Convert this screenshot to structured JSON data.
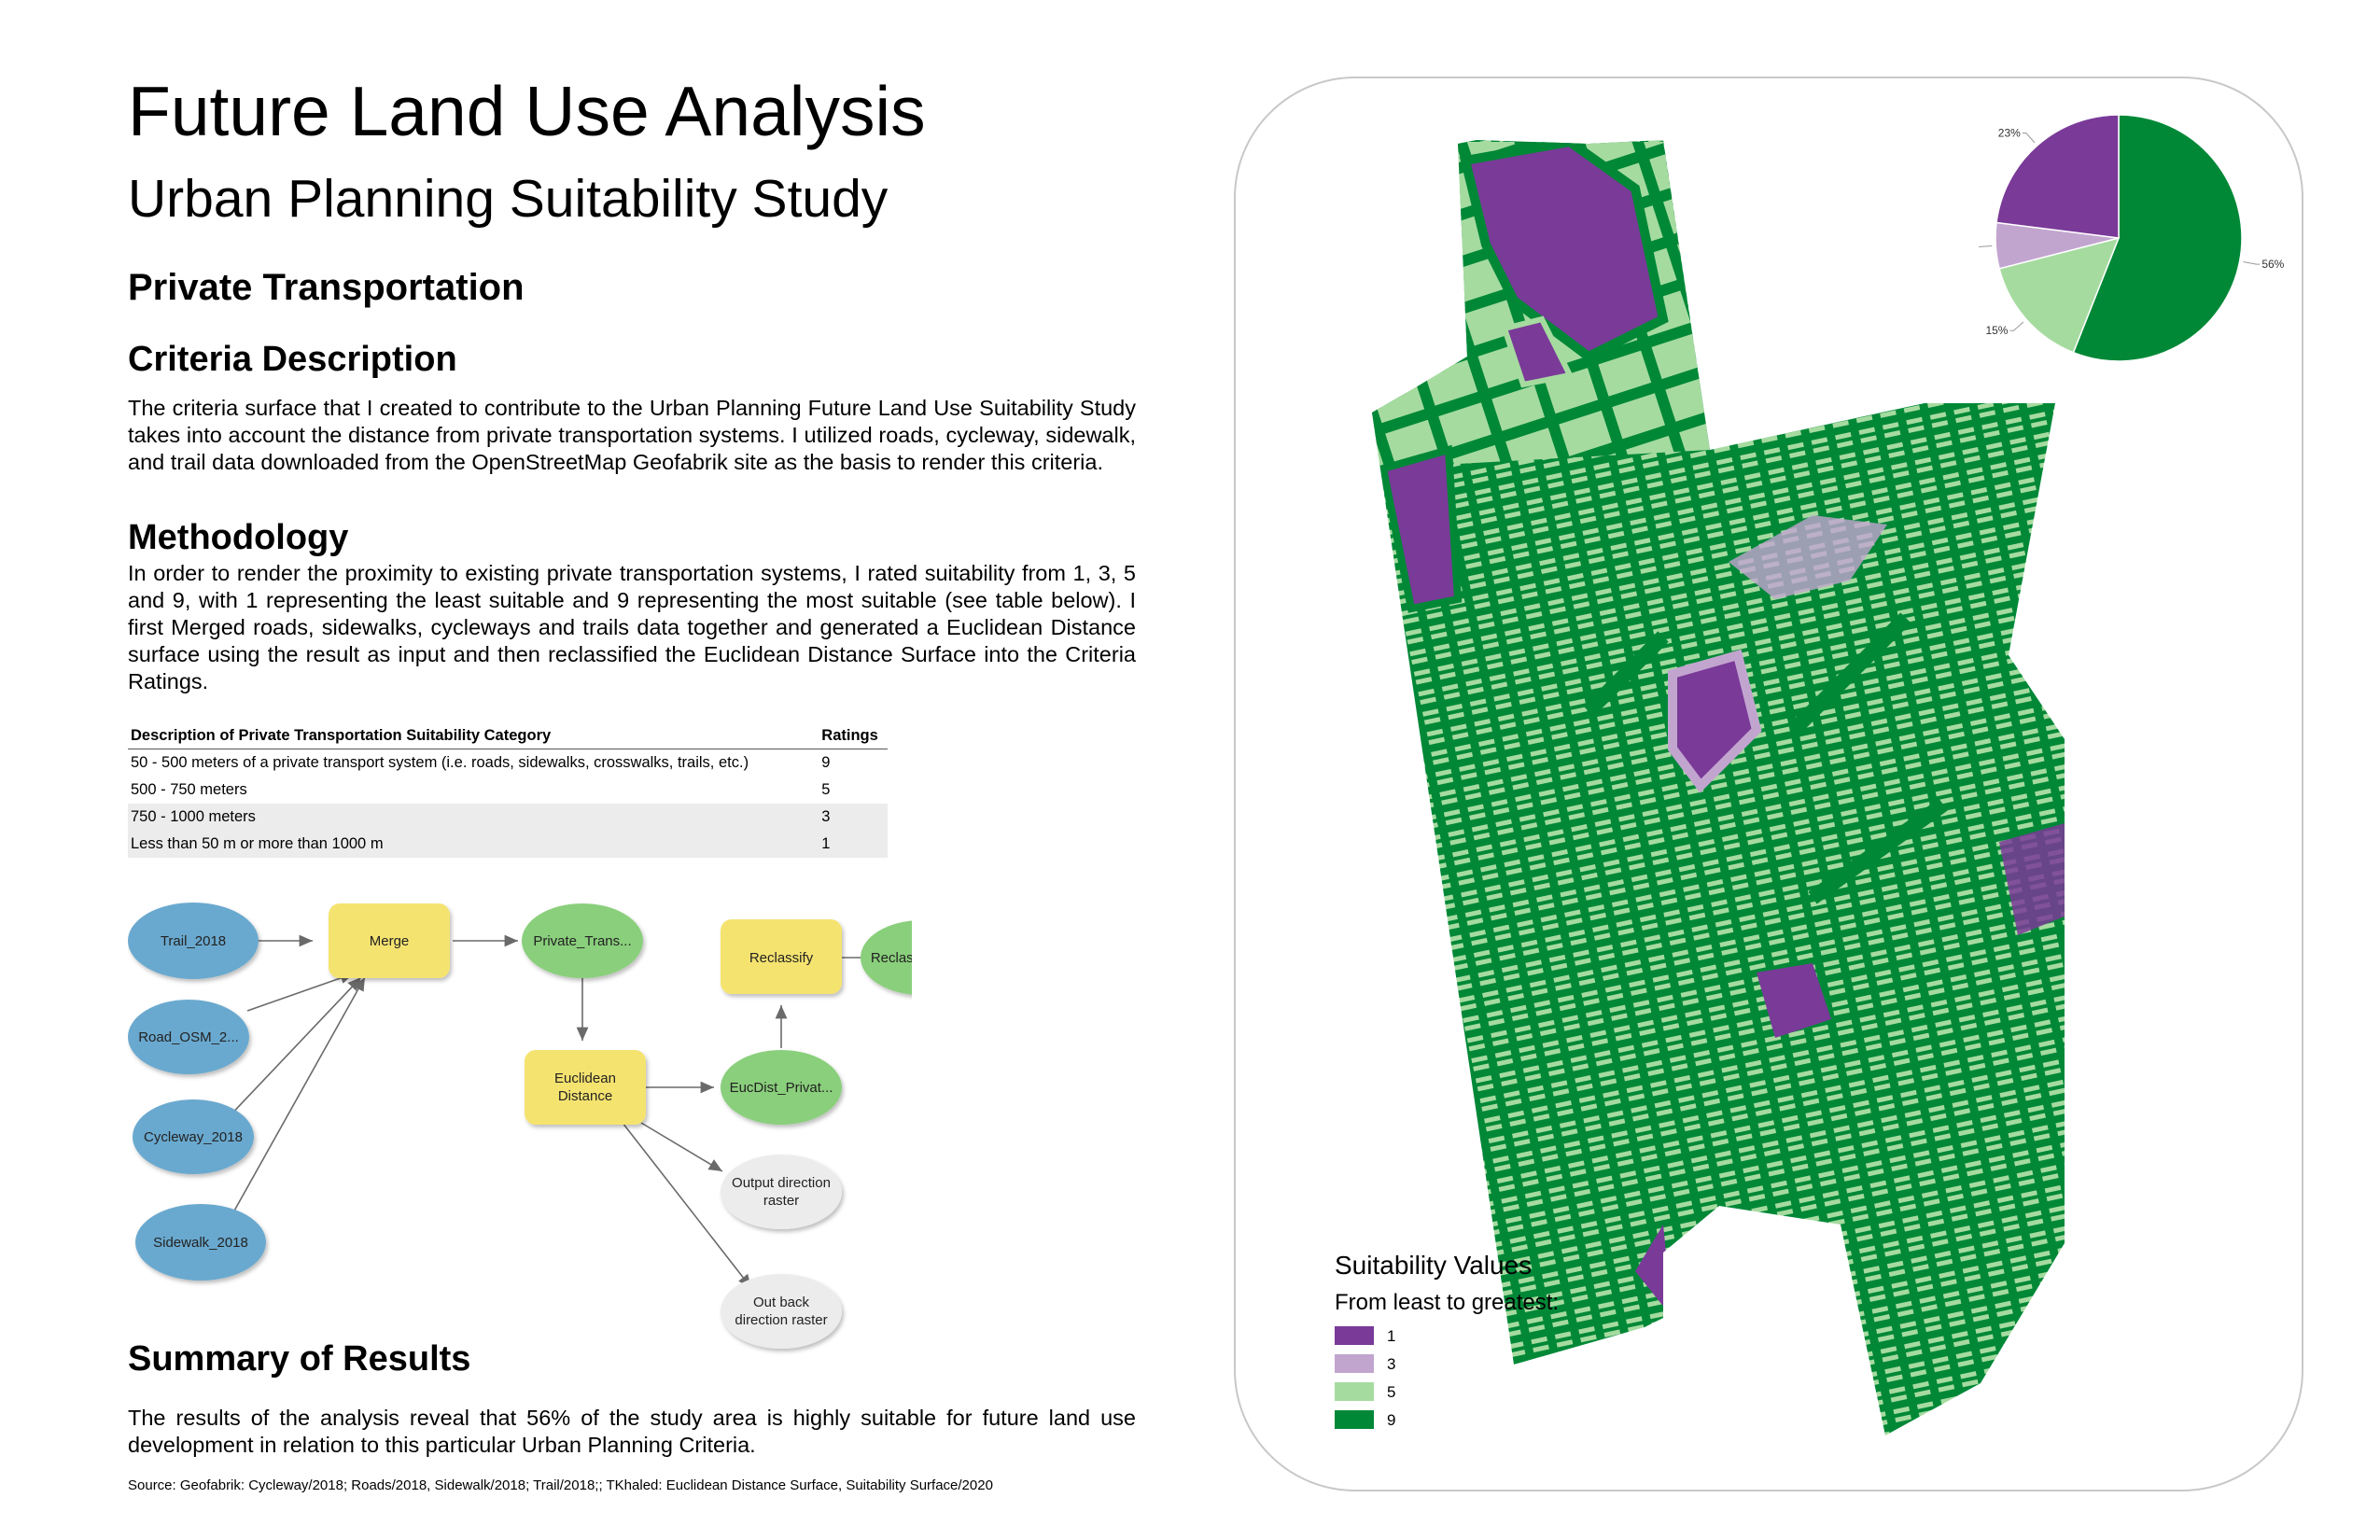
{
  "title": "Future Land Use Analysis",
  "subtitle": "Urban Planning Suitability Study",
  "section_title": "Private Transportation",
  "criteria": {
    "heading": "Criteria Description",
    "text": "The criteria surface that I created to contribute to the Urban Planning Future Land Use Suitability Study takes into account the distance from private transportation systems.  I utilized roads, cycleway, sidewalk, and trail data downloaded from the OpenStreetMap Geofabrik site as the basis to render this criteria."
  },
  "methodology": {
    "heading": "Methodology",
    "text": "In order to render the proximity to existing private transportation systems, I rated suitability from 1, 3, 5 and 9, with 1 representing the least suitable and 9 representing the most suitable (see table below). I first Merged roads, sidewalks, cycleways and trails data together and generated a Euclidean Distance surface using the result as input and then reclassified the Euclidean Distance Surface into the Criteria Ratings."
  },
  "table": {
    "headers": [
      "Description of Private Transportation Suitability Category",
      "Ratings"
    ],
    "rows": [
      [
        "50 - 500 meters of a private transport system (i.e. roads, sidewalks, crosswalks, trails, etc.)",
        "9"
      ],
      [
        "500 - 750 meters",
        "5"
      ],
      [
        "750 - 1000 meters",
        "3"
      ],
      [
        "Less than 50 m or more than 1000 m",
        "1"
      ]
    ]
  },
  "model": {
    "inputs": [
      "Trail_2018",
      "Road_OSM_2...",
      "Cycleway_2018",
      "Sidewalk_2018"
    ],
    "merge_tool": "Merge",
    "merge_output": "Private_Trans...",
    "euclid_tool_line1": "Euclidean",
    "euclid_tool_line2": "Distance",
    "euclid_output": "EucDist_Privat...",
    "reclass_tool": "Reclassify",
    "reclass_output": "Reclass_Priva...",
    "direction_line1": "Output direction",
    "direction_line2": "raster",
    "backdir_line1": "Out back",
    "backdir_line2": "direction raster",
    "colors": {
      "input": "#6ba9cf",
      "tool": "#f5e36f",
      "output": "#8acf7c",
      "derived": "#ececec"
    }
  },
  "summary": {
    "heading": "Summary of Results",
    "text": "The results of the analysis reveal that 56% of the study area is highly suitable for future land use development in relation to this particular Urban Planning Criteria."
  },
  "source": "Source: Geofabrik: Cycleway/2018; Roads/2018, Sidewalk/2018; Trail/2018;; TKhaled: Euclidean Distance Surface, Suitability Surface/2020",
  "legend": {
    "title": "Suitability Values",
    "subtitle": "From least to greatest:",
    "items": [
      {
        "label": "1",
        "color": "#7a3a98"
      },
      {
        "label": "3",
        "color": "#c2a5cf"
      },
      {
        "label": "5",
        "color": "#a6dba0"
      },
      {
        "label": "9",
        "color": "#008837"
      }
    ]
  },
  "chart_data": {
    "type": "pie",
    "slices": [
      {
        "label": "56%",
        "value": 56,
        "color": "#008837"
      },
      {
        "label": "15%",
        "value": 15,
        "color": "#a6dba0"
      },
      {
        "label": "6%",
        "value": 6,
        "color": "#c2a5cf"
      },
      {
        "label": "23%",
        "value": 23,
        "color": "#7a3a98"
      }
    ]
  }
}
